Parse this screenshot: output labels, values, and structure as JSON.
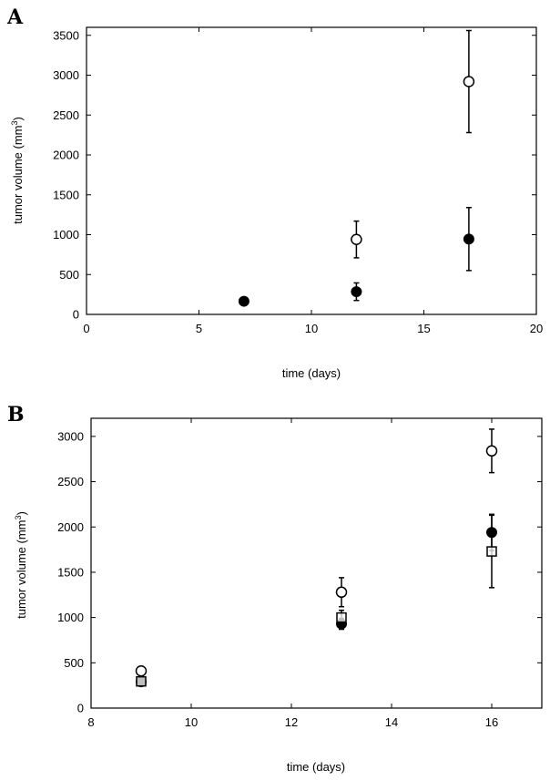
{
  "chart_data": [
    {
      "panel": "A",
      "type": "scatter",
      "xlabel": "time (days)",
      "ylabel": "tumor volume (mm3)",
      "xlim": [
        0,
        20
      ],
      "ylim": [
        0,
        3600
      ],
      "xticks": [
        0,
        5,
        10,
        15,
        20
      ],
      "yticks": [
        0,
        500,
        1000,
        1500,
        2000,
        2500,
        3000,
        3500
      ],
      "grid": false,
      "series": [
        {
          "marker": "open-circle",
          "points": [
            {
              "x": 12,
              "y": 940,
              "err": 230
            },
            {
              "x": 17,
              "y": 2920,
              "err": 640
            }
          ]
        },
        {
          "marker": "filled-circle",
          "points": [
            {
              "x": 7,
              "y": 165,
              "err": 0
            },
            {
              "x": 12,
              "y": 285,
              "err": 110
            },
            {
              "x": 17,
              "y": 945,
              "err": 395
            }
          ]
        }
      ]
    },
    {
      "panel": "B",
      "type": "scatter",
      "xlabel": "time (days)",
      "ylabel": "tumor volume (mm3)",
      "xlim": [
        8,
        17
      ],
      "ylim": [
        0,
        3200
      ],
      "xticks": [
        8,
        10,
        12,
        14,
        16
      ],
      "yticks": [
        0,
        500,
        1000,
        1500,
        2000,
        2500,
        3000
      ],
      "grid": false,
      "series": [
        {
          "marker": "open-circle",
          "points": [
            {
              "x": 9,
              "y": 410,
              "err": 50
            },
            {
              "x": 13,
              "y": 1280,
              "err": 160
            },
            {
              "x": 16,
              "y": 2840,
              "err": 240
            }
          ]
        },
        {
          "marker": "filled-circle",
          "points": [
            {
              "x": 9,
              "y": 290,
              "err": 30
            },
            {
              "x": 13,
              "y": 930,
              "err": 60
            },
            {
              "x": 16,
              "y": 1940,
              "err": 200
            }
          ]
        },
        {
          "marker": "open-square",
          "points": [
            {
              "x": 9,
              "y": 295,
              "err": 30
            },
            {
              "x": 13,
              "y": 1000,
              "err": 80
            },
            {
              "x": 16,
              "y": 1730,
              "err": 400
            }
          ]
        }
      ]
    }
  ]
}
